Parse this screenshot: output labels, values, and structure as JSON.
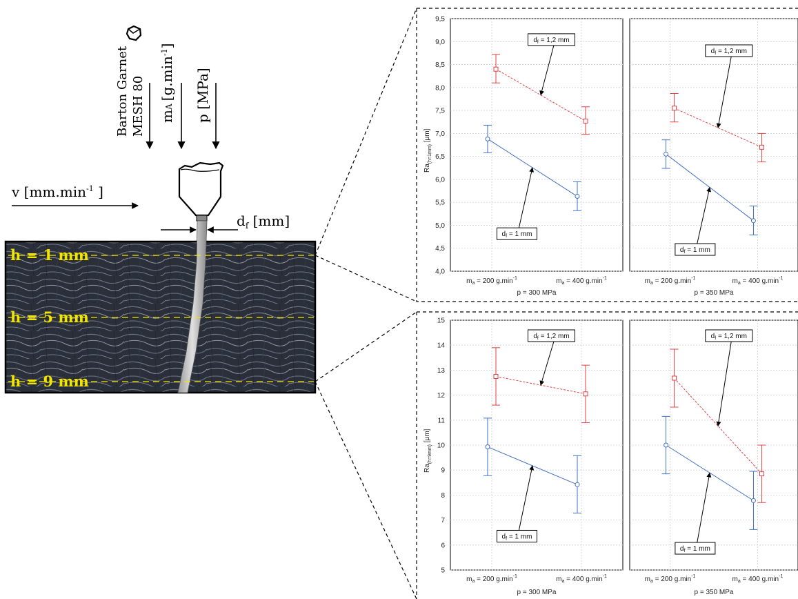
{
  "diagram": {
    "abrasive_label_line1": "Barton Garnet",
    "abrasive_label_line2": "MESH 80",
    "mass_flow_label": "m",
    "mass_flow_sub": "A",
    "mass_flow_unit": "[g.min",
    "mass_flow_unit_sup": "-1",
    "mass_flow_unit_close": "]",
    "pressure_label": "p [MPa]",
    "velocity_label": "v [mm.min",
    "velocity_sup": "-1",
    "velocity_close": " ]",
    "diameter_label": "d",
    "diameter_sub": "f",
    "diameter_unit": " [mm]",
    "depth_labels": [
      "h = 1 mm",
      "h = 5 mm",
      "h = 9 mm"
    ],
    "accent_yellow": "#f2e600"
  },
  "chart_data": [
    {
      "type": "line",
      "ylabel": "Ra",
      "ylabel_sub": "(h=1mm)",
      "ylabel_unit": " [μm]",
      "ylim": [
        4.0,
        9.5
      ],
      "yticks": [
        "4,0",
        "4,5",
        "5,0",
        "5,5",
        "6,0",
        "6,5",
        "7,0",
        "7,5",
        "8,0",
        "8,5",
        "9,0",
        "9,5"
      ],
      "ytick_values": [
        4.0,
        4.5,
        5.0,
        5.5,
        6.0,
        6.5,
        7.0,
        7.5,
        8.0,
        8.5,
        9.0,
        9.5
      ],
      "panels": [
        {
          "xlabel": "p = 300 MPa",
          "categories": [
            "200 g.min",
            "400 g.min"
          ],
          "series": [
            {
              "name": "d_f = 1,2 mm",
              "label_main": "d",
              "label_sub": "f",
              "label_rest": " = 1,2 mm",
              "color": "#e04040",
              "dashed": true,
              "marker": "square",
              "values": [
                8.4,
                7.27
              ],
              "lower": [
                8.1,
                6.98
              ],
              "upper": [
                8.72,
                7.58
              ]
            },
            {
              "name": "d_f = 1 mm",
              "label_main": "d",
              "label_sub": "f",
              "label_rest": " = 1 mm",
              "color": "#3f6fc0",
              "dashed": false,
              "marker": "circle",
              "values": [
                6.88,
                5.63
              ],
              "lower": [
                6.58,
                5.32
              ],
              "upper": [
                7.18,
                5.95
              ]
            }
          ]
        },
        {
          "xlabel": "p = 350 MPa",
          "categories": [
            "200 g.min",
            "400 g.min"
          ],
          "series": [
            {
              "name": "d_f = 1,2 mm",
              "label_main": "d",
              "label_sub": "f",
              "label_rest": " = 1,2 mm",
              "color": "#e04040",
              "dashed": true,
              "marker": "square",
              "values": [
                7.55,
                6.7
              ],
              "lower": [
                7.25,
                6.38
              ],
              "upper": [
                7.87,
                7.0
              ]
            },
            {
              "name": "d_f = 1 mm",
              "label_main": "d",
              "label_sub": "f",
              "label_rest": " = 1 mm",
              "color": "#3f6fc0",
              "dashed": false,
              "marker": "circle",
              "values": [
                6.55,
                5.1
              ],
              "lower": [
                6.24,
                4.79
              ],
              "upper": [
                6.86,
                5.42
              ]
            }
          ]
        }
      ]
    },
    {
      "type": "line",
      "ylabel": "Ra",
      "ylabel_sub": "(h=9mm)",
      "ylabel_unit": " [μm]",
      "ylim": [
        5,
        15
      ],
      "yticks": [
        "5",
        "6",
        "7",
        "8",
        "9",
        "10",
        "11",
        "12",
        "13",
        "14",
        "15"
      ],
      "ytick_values": [
        5,
        6,
        7,
        8,
        9,
        10,
        11,
        12,
        13,
        14,
        15
      ],
      "panels": [
        {
          "xlabel": "p = 300 MPa",
          "categories": [
            "200 g.min",
            "400 g.min"
          ],
          "series": [
            {
              "name": "d_f = 1,2 mm",
              "label_main": "d",
              "label_sub": "f",
              "label_rest": " = 1,2 mm",
              "color": "#e04040",
              "dashed": true,
              "marker": "square",
              "values": [
                12.75,
                12.05
              ],
              "lower": [
                11.6,
                10.9
              ],
              "upper": [
                13.9,
                13.2
              ]
            },
            {
              "name": "d_f = 1 mm",
              "label_main": "d",
              "label_sub": "f",
              "label_rest": " = 1 mm",
              "color": "#3f6fc0",
              "dashed": false,
              "marker": "circle",
              "values": [
                9.93,
                8.42
              ],
              "lower": [
                8.78,
                7.28
              ],
              "upper": [
                11.08,
                9.58
              ]
            }
          ]
        },
        {
          "xlabel": "p = 350 MPa",
          "categories": [
            "200 g.min",
            "400 g.min"
          ],
          "series": [
            {
              "name": "d_f = 1,2 mm",
              "label_main": "d",
              "label_sub": "f",
              "label_rest": " = 1,2 mm",
              "color": "#e04040",
              "dashed": true,
              "marker": "square",
              "values": [
                12.68,
                8.85
              ],
              "lower": [
                11.52,
                7.7
              ],
              "upper": [
                13.84,
                10.0
              ]
            },
            {
              "name": "d_f = 1 mm",
              "label_main": "d",
              "label_sub": "f",
              "label_rest": " = 1 mm",
              "color": "#3f6fc0",
              "dashed": false,
              "marker": "circle",
              "values": [
                10.0,
                7.78
              ],
              "lower": [
                8.85,
                6.62
              ],
              "upper": [
                11.15,
                8.95
              ]
            }
          ]
        }
      ]
    }
  ],
  "chart_common": {
    "xtick_prefix": "m",
    "xtick_prefix_sub": "a",
    "xtick_eq": " = ",
    "xtick_sup": "-1"
  }
}
